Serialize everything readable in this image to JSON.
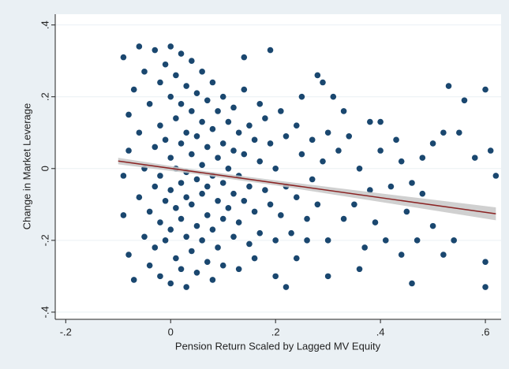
{
  "chart_data": {
    "type": "scatter",
    "xlabel": "Pension Return Scaled by Lagged MV Equity",
    "ylabel": "Change in Market Leverage",
    "color": "#1a476f",
    "grid": true,
    "xlim": [
      -0.22,
      0.63
    ],
    "xticks": [
      {
        "value": -0.2,
        "label": "-.2"
      },
      0,
      {
        "value": 0.2,
        "label": ".2"
      },
      {
        "value": 0.4,
        "label": ".4"
      },
      {
        "value": 0.6,
        "label": ".6"
      }
    ],
    "ylim": [
      -0.42,
      0.43
    ],
    "yticks": [
      {
        "value": -0.4,
        "label": "-.4"
      },
      {
        "value": -0.2,
        "label": "-.2"
      },
      0,
      {
        "value": 0.2,
        "label": ".2"
      },
      {
        "value": 0.4,
        "label": ".4"
      }
    ],
    "x": [
      -0.09,
      -0.08,
      -0.08,
      -0.09,
      -0.09,
      -0.08,
      -0.07,
      -0.07,
      -0.06,
      -0.06,
      -0.06,
      -0.05,
      -0.05,
      -0.05,
      -0.04,
      -0.04,
      -0.04,
      -0.03,
      -0.03,
      -0.03,
      -0.03,
      -0.02,
      -0.02,
      -0.02,
      -0.02,
      -0.02,
      -0.01,
      -0.01,
      -0.01,
      -0.01,
      0,
      0,
      0,
      0,
      0,
      0,
      0.01,
      0.01,
      0.01,
      0.01,
      0.01,
      0.02,
      0.02,
      0.02,
      0.02,
      0.02,
      0.02,
      0.03,
      0.03,
      0.03,
      0.03,
      0.03,
      0.03,
      0.04,
      0.04,
      0.04,
      0.04,
      0.04,
      0.05,
      0.05,
      0.05,
      0.05,
      0.05,
      0.06,
      0.06,
      0.06,
      0.06,
      0.06,
      0.07,
      0.07,
      0.07,
      0.07,
      0.07,
      0.08,
      0.08,
      0.08,
      0.08,
      0.08,
      0.09,
      0.09,
      0.09,
      0.09,
      0.1,
      0.1,
      0.1,
      0.1,
      0.1,
      0.11,
      0.11,
      0.11,
      0.12,
      0.12,
      0.12,
      0.12,
      0.13,
      0.13,
      0.13,
      0.14,
      0.14,
      0.14,
      0.15,
      0.15,
      0.15,
      0.16,
      0.16,
      0.17,
      0.17,
      0.17,
      0.18,
      0.18,
      0.19,
      0.19,
      0.2,
      0.2,
      0.21,
      0.21,
      0.22,
      0.22,
      0.23,
      0.24,
      0.24,
      0.25,
      0.26,
      0.27,
      0.28,
      0.29,
      0.3,
      0.32,
      0.33,
      0.34,
      0.6,
      0.56,
      0.53,
      0.61,
      0.6,
      0.6,
      0.62,
      0.58,
      0.55,
      0.52,
      0.5,
      0.48,
      0.46,
      0.46,
      0.44,
      0.5,
      0.52,
      0.54,
      0.48,
      0.43,
      0.4,
      0.38,
      0.36,
      0.35,
      0.33,
      0.31,
      0.29,
      0.28,
      0.3,
      0.27,
      0.25,
      0.24,
      0.26,
      0.3,
      0.22,
      0.2,
      0.19,
      0.14,
      0.16,
      0.13,
      0.42,
      0.44,
      0.39,
      0.41,
      0.37,
      0.36,
      0.45,
      0.47,
      0.4,
      0.38
    ],
    "values": [
      0.31,
      0.15,
      0.05,
      -0.02,
      -0.13,
      -0.24,
      -0.31,
      0.22,
      0.34,
      0.1,
      -0.08,
      -0.19,
      0.27,
      0,
      0.18,
      -0.12,
      -0.27,
      0.33,
      0.06,
      -0.05,
      -0.22,
      0.24,
      0.12,
      -0.02,
      -0.15,
      -0.3,
      0.29,
      0.08,
      -0.09,
      -0.2,
      0.34,
      0.2,
      0.03,
      -0.06,
      -0.17,
      -0.32,
      0.26,
      0.14,
      0,
      -0.11,
      -0.25,
      0.32,
      0.18,
      0.07,
      -0.04,
      -0.14,
      -0.28,
      0.23,
      0.1,
      -0.01,
      -0.08,
      -0.19,
      -0.33,
      0.3,
      0.16,
      0.04,
      -0.1,
      -0.23,
      0.21,
      0.09,
      -0.03,
      -0.16,
      -0.29,
      0.27,
      0.13,
      0.01,
      -0.07,
      -0.2,
      0.19,
      0.06,
      -0.05,
      -0.13,
      -0.26,
      0.24,
      0.11,
      -0.02,
      -0.17,
      -0.31,
      0.16,
      0.03,
      -0.09,
      -0.22,
      0.2,
      0.07,
      -0.04,
      -0.14,
      -0.27,
      0.13,
      0,
      -0.11,
      0.17,
      0.05,
      -0.07,
      -0.19,
      0.1,
      -0.02,
      -0.15,
      0.22,
      0.04,
      -0.09,
      0.12,
      -0.05,
      -0.21,
      0.08,
      -0.12,
      0.18,
      0.02,
      -0.18,
      0.14,
      -0.06,
      0.07,
      -0.1,
      0,
      -0.2,
      0.16,
      -0.13,
      0.09,
      -0.05,
      -0.18,
      0.12,
      -0.08,
      0.04,
      -0.14,
      0.08,
      -0.1,
      0.02,
      -0.2,
      0.05,
      -0.14,
      0.09,
      0.22,
      0.19,
      0.23,
      0.05,
      -0.26,
      -0.33,
      -0.02,
      0.03,
      0.1,
      0.1,
      0.07,
      0.03,
      -0.04,
      -0.32,
      -0.24,
      -0.16,
      -0.24,
      -0.2,
      -0.07,
      0.08,
      0.13,
      0.13,
      0,
      -0.1,
      0.16,
      0.2,
      0.24,
      0.26,
      0.1,
      -0.03,
      0.2,
      -0.25,
      -0.2,
      -0.3,
      -0.33,
      -0.3,
      0.33,
      0.31,
      -0.25,
      -0.28,
      -0.05,
      0.02,
      -0.15,
      -0.2,
      -0.22,
      -0.28,
      -0.12,
      -0.2,
      0.05,
      -0.06
    ],
    "ci": {
      "x": [
        -0.1,
        0.05,
        0.2,
        0.4,
        0.62
      ],
      "upper": [
        0.03,
        -0.004,
        -0.033,
        -0.069,
        -0.108
      ],
      "lower": [
        0.012,
        -0.016,
        -0.047,
        -0.093,
        -0.144
      ],
      "color": "#c8c8c8"
    },
    "fit": {
      "x": [
        -0.1,
        0.62
      ],
      "values": [
        0.021,
        -0.126
      ],
      "color": "#8b2323"
    }
  }
}
